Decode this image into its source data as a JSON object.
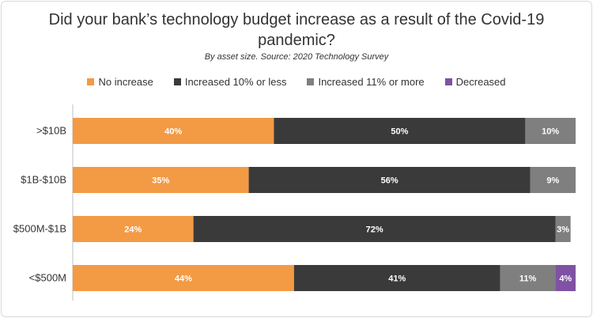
{
  "chart_data": {
    "type": "bar",
    "orientation": "horizontal",
    "stacked": true,
    "title": "Did your bank’s technology budget increase as a result of the Covid-19 pandemic?",
    "subtitle": "By asset size. Source: 2020 Technology Survey",
    "categories": [
      ">$10B",
      "$1B-$10B",
      "$500M-$1B",
      "<$500M"
    ],
    "series": [
      {
        "name": "No increase",
        "color": "#f39a45",
        "values": [
          40,
          35,
          24,
          44
        ],
        "labels": [
          "40%",
          "35%",
          "24%",
          "44%"
        ]
      },
      {
        "name": "Increased 10% or less",
        "color": "#3a3a3a",
        "values": [
          50,
          56,
          72,
          41
        ],
        "labels": [
          "50%",
          "56%",
          "72%",
          "41%"
        ]
      },
      {
        "name": "Increased 11% or more",
        "color": "#7f7f7f",
        "values": [
          10,
          9,
          3,
          11
        ],
        "labels": [
          "10%",
          "9%",
          "3%",
          "11%"
        ]
      },
      {
        "name": "Decreased",
        "color": "#7f52a3",
        "values": [
          0,
          0,
          0,
          4
        ],
        "labels": [
          "",
          "",
          "",
          "4%"
        ]
      }
    ],
    "xlim": [
      0,
      100
    ],
    "legend_position": "top",
    "grid": false
  }
}
